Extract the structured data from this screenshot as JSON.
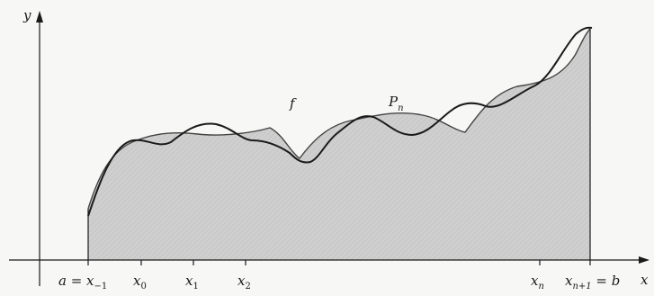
{
  "axes": {
    "x_label": "x",
    "y_label": "y"
  },
  "curves": {
    "f_label": "f",
    "p_label_main": "P",
    "p_label_sub": "n"
  },
  "ticks": [
    {
      "main": "a = x",
      "sub": "−1",
      "suffix": ""
    },
    {
      "main": "x",
      "sub": "0",
      "suffix": ""
    },
    {
      "main": "x",
      "sub": "1",
      "suffix": ""
    },
    {
      "main": "x",
      "sub": "2",
      "suffix": ""
    },
    {
      "main": "x",
      "sub": "n",
      "suffix": ""
    },
    {
      "main": "x",
      "sub": "n+1",
      "suffix": " = b"
    }
  ],
  "colors": {
    "shade": "#c9c9c9",
    "ink": "#1a1a1a"
  }
}
